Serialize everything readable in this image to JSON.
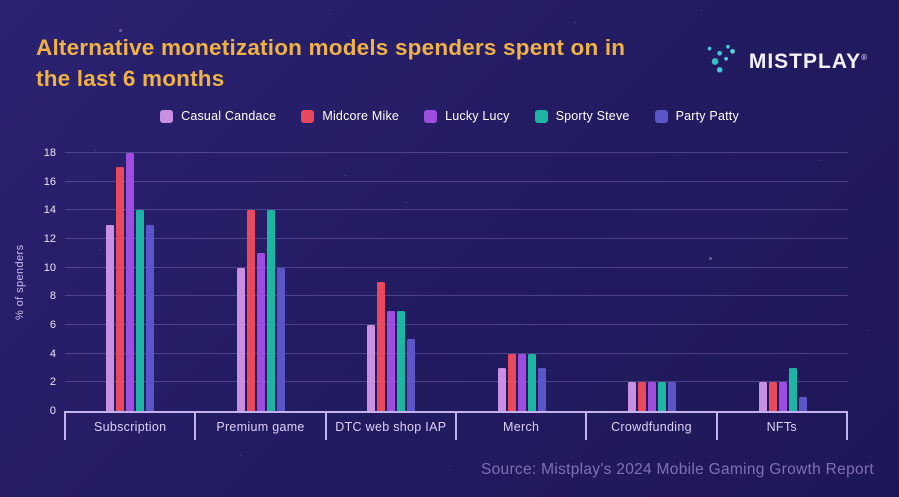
{
  "header": {
    "title_line1": "Alternative monetization models spenders spent on in",
    "title_line2": "the last 6 months",
    "logo_text": "MISTPLAY",
    "logo_reg": "®"
  },
  "footer": {
    "source": "Source:  Mistplay's 2024 Mobile Gaming Growth Report"
  },
  "colors": {
    "background": "#241c63",
    "title": "#f0b145",
    "axis": "#c3b2ee",
    "gridline": "#4a3f8e",
    "source_text": "#7d71b5"
  },
  "chart_data": {
    "type": "bar",
    "title": "Alternative monetization models spenders spent on in the last 6 months",
    "categories": [
      "Subscription",
      "Premium game",
      "DTC web shop IAP",
      "Merch",
      "Crowdfunding",
      "NFTs"
    ],
    "series": [
      {
        "name": "Casual Candace",
        "color": "#c98fe3",
        "values": [
          13,
          10,
          6,
          3,
          2,
          2
        ]
      },
      {
        "name": "Midcore Mike",
        "color": "#e8495c",
        "values": [
          17,
          14,
          9,
          4,
          2,
          2
        ]
      },
      {
        "name": "Lucky Lucy",
        "color": "#9e4ede",
        "values": [
          18,
          11,
          7,
          4,
          2,
          2
        ]
      },
      {
        "name": "Sporty Steve",
        "color": "#1db4a4",
        "values": [
          14,
          14,
          7,
          4,
          2,
          3
        ]
      },
      {
        "name": "Party Patty",
        "color": "#5c55c7",
        "values": [
          13,
          10,
          5,
          3,
          2,
          1
        ]
      }
    ],
    "xlabel": "",
    "ylabel": "% of spenders",
    "ylim": [
      0,
      18
    ],
    "ytick_step": 2,
    "grid": "horizontal",
    "legend_position": "top"
  }
}
